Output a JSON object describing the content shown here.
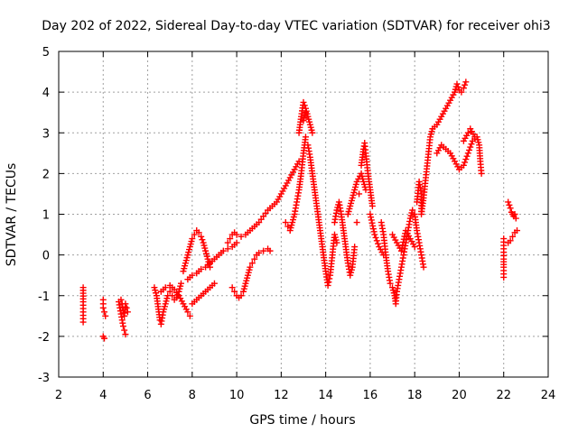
{
  "chart_data": {
    "type": "scatter",
    "title": "Day 202 of 2022, Sidereal Day-to-day VTEC variation (SDTVAR) for receiver ohi3",
    "xlabel": "GPS time / hours",
    "ylabel": "SDTVAR / TECUs",
    "xlim": [
      2,
      24
    ],
    "ylim": [
      -3,
      5
    ],
    "xticks": [
      2,
      4,
      6,
      8,
      10,
      12,
      14,
      16,
      18,
      20,
      22,
      24
    ],
    "yticks": [
      -3,
      -2,
      -1,
      0,
      1,
      2,
      3,
      4,
      5
    ],
    "grid": true,
    "marker": "+",
    "marker_color": "#ff0000",
    "series": [
      {
        "name": "SDTVAR",
        "color": "#ff0000",
        "points": [
          [
            3.1,
            -0.8
          ],
          [
            3.1,
            -1.15
          ],
          [
            3.1,
            -1.4
          ],
          [
            3.1,
            -1.65
          ],
          [
            4.0,
            -1.1
          ],
          [
            4.0,
            -1.2
          ],
          [
            4.0,
            -1.3
          ],
          [
            4.05,
            -1.4
          ],
          [
            4.1,
            -1.5
          ],
          [
            4.0,
            -2.0
          ],
          [
            4.05,
            -2.05
          ],
          [
            4.7,
            -1.15
          ],
          [
            4.75,
            -1.3
          ],
          [
            4.8,
            -1.45
          ],
          [
            4.85,
            -1.6
          ],
          [
            4.9,
            -1.75
          ],
          [
            4.95,
            -1.85
          ],
          [
            5.0,
            -1.95
          ],
          [
            4.8,
            -1.1
          ],
          [
            4.85,
            -1.2
          ],
          [
            4.9,
            -1.35
          ],
          [
            4.95,
            -1.5
          ],
          [
            5.0,
            -1.2
          ],
          [
            5.05,
            -1.3
          ],
          [
            5.1,
            -1.4
          ],
          [
            6.3,
            -0.8
          ],
          [
            6.4,
            -1.0
          ],
          [
            6.45,
            -1.2
          ],
          [
            6.5,
            -1.4
          ],
          [
            6.55,
            -1.6
          ],
          [
            6.6,
            -1.7
          ],
          [
            6.7,
            -1.4
          ],
          [
            6.8,
            -1.2
          ],
          [
            6.9,
            -1.0
          ],
          [
            7.0,
            -0.9
          ],
          [
            7.1,
            -1.0
          ],
          [
            7.2,
            -1.1
          ],
          [
            7.3,
            -1.05
          ],
          [
            7.4,
            -0.9
          ],
          [
            7.5,
            -0.7
          ],
          [
            6.6,
            -0.9
          ],
          [
            6.8,
            -0.8
          ],
          [
            7.0,
            -0.75
          ],
          [
            7.2,
            -0.85
          ],
          [
            7.4,
            -1.0
          ],
          [
            7.6,
            -1.2
          ],
          [
            7.8,
            -1.4
          ],
          [
            7.9,
            -1.5
          ],
          [
            7.6,
            -0.4
          ],
          [
            7.7,
            -0.2
          ],
          [
            7.8,
            0.0
          ],
          [
            7.9,
            0.2
          ],
          [
            8.0,
            0.4
          ],
          [
            8.1,
            0.5
          ],
          [
            8.2,
            0.6
          ],
          [
            8.3,
            0.55
          ],
          [
            8.4,
            0.45
          ],
          [
            8.5,
            0.3
          ],
          [
            8.6,
            0.1
          ],
          [
            8.7,
            -0.1
          ],
          [
            8.8,
            -0.3
          ],
          [
            7.8,
            -0.6
          ],
          [
            8.0,
            -0.5
          ],
          [
            8.2,
            -0.45
          ],
          [
            8.4,
            -0.35
          ],
          [
            8.6,
            -0.3
          ],
          [
            8.8,
            -0.2
          ],
          [
            9.0,
            -0.1
          ],
          [
            9.2,
            0.0
          ],
          [
            9.4,
            0.1
          ],
          [
            9.6,
            0.15
          ],
          [
            9.8,
            0.2
          ],
          [
            10.0,
            0.3
          ],
          [
            8.0,
            -1.2
          ],
          [
            8.2,
            -1.1
          ],
          [
            8.4,
            -1.0
          ],
          [
            8.6,
            -0.9
          ],
          [
            8.8,
            -0.8
          ],
          [
            9.0,
            -0.7
          ],
          [
            9.8,
            -0.8
          ],
          [
            9.9,
            -0.9
          ],
          [
            10.0,
            -1.0
          ],
          [
            10.1,
            -1.05
          ],
          [
            10.2,
            -1.0
          ],
          [
            10.3,
            -0.9
          ],
          [
            10.4,
            -0.7
          ],
          [
            10.5,
            -0.5
          ],
          [
            10.6,
            -0.3
          ],
          [
            10.7,
            -0.2
          ],
          [
            10.8,
            -0.1
          ],
          [
            10.9,
            0.0
          ],
          [
            11.0,
            0.05
          ],
          [
            11.2,
            0.1
          ],
          [
            11.4,
            0.15
          ],
          [
            11.5,
            0.1
          ],
          [
            9.6,
            0.3
          ],
          [
            9.7,
            0.4
          ],
          [
            9.8,
            0.5
          ],
          [
            9.9,
            0.55
          ],
          [
            10.0,
            0.5
          ],
          [
            10.2,
            0.45
          ],
          [
            10.4,
            0.5
          ],
          [
            10.6,
            0.6
          ],
          [
            10.8,
            0.7
          ],
          [
            11.0,
            0.8
          ],
          [
            11.2,
            0.95
          ],
          [
            11.4,
            1.1
          ],
          [
            11.6,
            1.2
          ],
          [
            11.8,
            1.3
          ],
          [
            12.0,
            1.5
          ],
          [
            12.2,
            1.7
          ],
          [
            12.4,
            1.9
          ],
          [
            12.6,
            2.1
          ],
          [
            12.8,
            2.3
          ],
          [
            12.8,
            3.0
          ],
          [
            12.9,
            3.4
          ],
          [
            13.0,
            3.75
          ],
          [
            13.1,
            3.6
          ],
          [
            13.2,
            3.4
          ],
          [
            13.3,
            3.2
          ],
          [
            13.4,
            3.0
          ],
          [
            13.2,
            2.7
          ],
          [
            13.3,
            2.4
          ],
          [
            13.4,
            2.0
          ],
          [
            13.5,
            1.6
          ],
          [
            13.6,
            1.2
          ],
          [
            13.7,
            0.8
          ],
          [
            13.8,
            0.4
          ],
          [
            13.9,
            0.0
          ],
          [
            14.0,
            -0.4
          ],
          [
            14.1,
            -0.75
          ],
          [
            14.2,
            -0.5
          ],
          [
            14.3,
            0.0
          ],
          [
            14.4,
            0.5
          ],
          [
            14.5,
            0.3
          ],
          [
            12.2,
            0.8
          ],
          [
            12.3,
            0.7
          ],
          [
            12.4,
            0.6
          ],
          [
            12.5,
            0.8
          ],
          [
            12.6,
            1.0
          ],
          [
            12.7,
            1.3
          ],
          [
            12.8,
            1.6
          ],
          [
            12.9,
            2.0
          ],
          [
            13.0,
            2.5
          ],
          [
            13.1,
            2.9
          ],
          [
            13.0,
            3.3
          ],
          [
            13.1,
            3.5
          ],
          [
            14.4,
            0.8
          ],
          [
            14.5,
            1.1
          ],
          [
            14.6,
            1.3
          ],
          [
            14.7,
            1.0
          ],
          [
            14.8,
            0.6
          ],
          [
            14.9,
            0.2
          ],
          [
            15.0,
            -0.2
          ],
          [
            15.1,
            -0.5
          ],
          [
            15.2,
            -0.3
          ],
          [
            15.3,
            0.2
          ],
          [
            15.4,
            0.8
          ],
          [
            15.5,
            1.5
          ],
          [
            15.6,
            2.2
          ],
          [
            15.7,
            2.6
          ],
          [
            15.75,
            2.75
          ],
          [
            15.8,
            2.5
          ],
          [
            15.9,
            2.0
          ],
          [
            16.0,
            1.6
          ],
          [
            16.1,
            1.2
          ],
          [
            15.0,
            1.0
          ],
          [
            15.2,
            1.4
          ],
          [
            15.4,
            1.8
          ],
          [
            15.6,
            2.0
          ],
          [
            15.8,
            1.6
          ],
          [
            16.0,
            1.0
          ],
          [
            16.2,
            0.5
          ],
          [
            16.4,
            0.2
          ],
          [
            16.6,
            0.0
          ],
          [
            16.5,
            0.8
          ],
          [
            16.6,
            0.5
          ],
          [
            16.7,
            0.0
          ],
          [
            16.8,
            -0.4
          ],
          [
            16.9,
            -0.7
          ],
          [
            17.0,
            -0.8
          ],
          [
            17.1,
            -1.0
          ],
          [
            17.15,
            -1.2
          ],
          [
            17.2,
            -0.9
          ],
          [
            17.3,
            -0.6
          ],
          [
            17.4,
            -0.3
          ],
          [
            17.5,
            0.0
          ],
          [
            17.6,
            0.3
          ],
          [
            17.7,
            0.6
          ],
          [
            17.8,
            0.9
          ],
          [
            17.9,
            1.1
          ],
          [
            18.0,
            1.0
          ],
          [
            18.1,
            0.6
          ],
          [
            18.2,
            0.3
          ],
          [
            18.3,
            0.0
          ],
          [
            18.4,
            -0.3
          ],
          [
            17.0,
            0.5
          ],
          [
            17.2,
            0.3
          ],
          [
            17.4,
            0.1
          ],
          [
            17.6,
            0.6
          ],
          [
            17.8,
            0.4
          ],
          [
            18.0,
            0.2
          ],
          [
            18.1,
            1.3
          ],
          [
            18.2,
            1.8
          ],
          [
            18.3,
            1.5
          ],
          [
            18.3,
            1.0
          ],
          [
            18.4,
            1.4
          ],
          [
            18.5,
            1.9
          ],
          [
            18.6,
            2.4
          ],
          [
            18.7,
            2.9
          ],
          [
            18.8,
            3.1
          ],
          [
            19.0,
            3.2
          ],
          [
            19.2,
            3.4
          ],
          [
            19.4,
            3.6
          ],
          [
            19.6,
            3.8
          ],
          [
            19.8,
            4.0
          ],
          [
            19.9,
            4.2
          ],
          [
            20.0,
            4.05
          ],
          [
            20.1,
            4.0
          ],
          [
            20.2,
            4.1
          ],
          [
            20.3,
            4.25
          ],
          [
            19.0,
            2.5
          ],
          [
            19.2,
            2.7
          ],
          [
            19.4,
            2.6
          ],
          [
            19.6,
            2.5
          ],
          [
            19.8,
            2.3
          ],
          [
            20.0,
            2.1
          ],
          [
            20.2,
            2.2
          ],
          [
            20.4,
            2.5
          ],
          [
            20.6,
            2.8
          ],
          [
            20.8,
            2.9
          ],
          [
            20.9,
            2.7
          ],
          [
            20.95,
            2.3
          ],
          [
            21.0,
            2.0
          ],
          [
            20.2,
            2.8
          ],
          [
            20.4,
            3.0
          ],
          [
            20.5,
            3.1
          ],
          [
            20.7,
            2.9
          ],
          [
            22.0,
            0.4
          ],
          [
            22.0,
            0.15
          ],
          [
            22.0,
            -0.1
          ],
          [
            22.0,
            -0.3
          ],
          [
            22.0,
            -0.55
          ],
          [
            22.2,
            0.3
          ],
          [
            22.3,
            0.35
          ],
          [
            22.4,
            0.45
          ],
          [
            22.5,
            0.55
          ],
          [
            22.6,
            0.6
          ],
          [
            22.2,
            1.3
          ],
          [
            22.3,
            1.15
          ],
          [
            22.35,
            1.05
          ],
          [
            22.4,
            1.0
          ],
          [
            22.45,
            0.95
          ],
          [
            22.5,
            1.0
          ],
          [
            22.55,
            0.9
          ]
        ]
      }
    ]
  }
}
